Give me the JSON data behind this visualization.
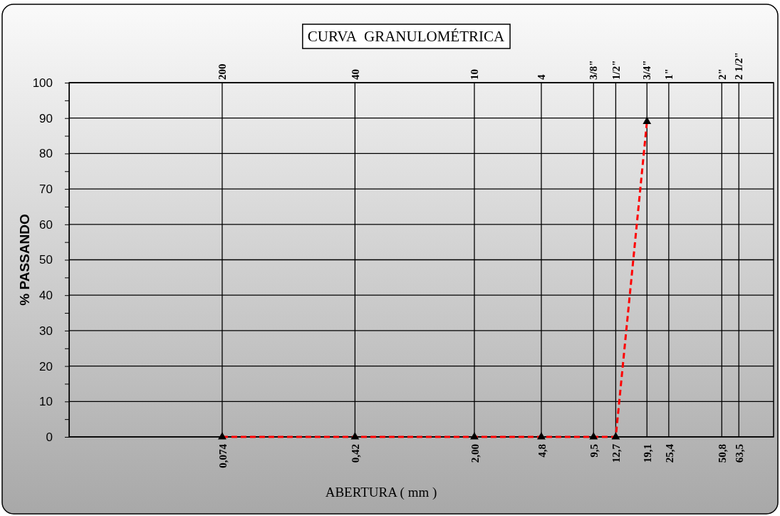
{
  "chart_data": {
    "type": "line",
    "title": "CURVA GRANULOMÉTRICA",
    "xlabel": "ABERTURA ( mm )",
    "ylabel": "% PASSANDO",
    "x": [
      0.074,
      0.42,
      2.0,
      4.8,
      9.5,
      12.7,
      19.1
    ],
    "series": [
      {
        "color": "#ff0000",
        "values": [
          0,
          0,
          0,
          0,
          0,
          0,
          89
        ]
      }
    ],
    "log": "x",
    "xlim": [
      0.01,
      100
    ],
    "xticks": [
      {
        "value": 0.074,
        "label": "0,074"
      },
      {
        "value": 0.42,
        "label": "0,42"
      },
      {
        "value": 2.0,
        "label": "2,00"
      },
      {
        "value": 4.8,
        "label": "4,8"
      },
      {
        "value": 9.5,
        "label": "9,5"
      },
      {
        "value": 12.7,
        "label": "12,7"
      },
      {
        "value": 19.1,
        "label": "19,1"
      },
      {
        "value": 25.4,
        "label": "25,4"
      },
      {
        "value": 50.8,
        "label": "50,8"
      },
      {
        "value": 63.5,
        "label": "63,5"
      }
    ],
    "annotations": [
      "200",
      "40",
      "10",
      "4",
      "3/8\"",
      "1/2\"",
      "3/4\"",
      "1\"",
      "2\"",
      "2 1/2\""
    ],
    "ylim": [
      0,
      100
    ],
    "yticks": [
      0,
      {
        "value": 5,
        "label": null
      },
      10,
      {
        "value": 15,
        "label": null
      },
      20,
      {
        "value": 25,
        "label": null
      },
      30,
      {
        "value": 35,
        "label": null
      },
      40,
      {
        "value": 45,
        "label": null
      },
      50,
      {
        "value": 55,
        "label": null
      },
      60,
      {
        "value": 65,
        "label": null
      },
      70,
      {
        "value": 75,
        "label": null
      },
      80,
      {
        "value": 85,
        "label": null
      },
      90,
      {
        "value": 95,
        "label": null
      },
      100
    ],
    "grid": true,
    "marker": "triangle",
    "line_style": "dashed"
  }
}
